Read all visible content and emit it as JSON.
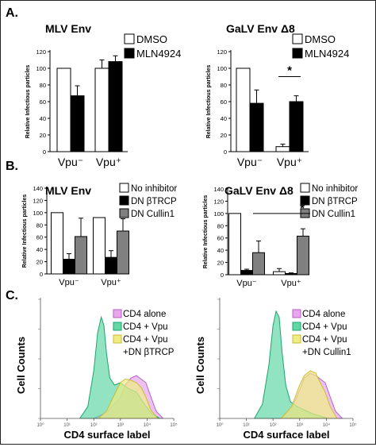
{
  "panels": {
    "A": {
      "label": "A."
    },
    "B": {
      "label": "B."
    },
    "C": {
      "label": "C."
    }
  },
  "chart_data": [
    {
      "id": "A-MLV",
      "type": "bar",
      "title": "MLV Env",
      "ylabel": "Relative Infectious particles",
      "ylim": [
        0,
        120
      ],
      "yticks": [
        0,
        20,
        40,
        60,
        80,
        100,
        120
      ],
      "categories": [
        "Vpu⁻",
        "Vpu⁺"
      ],
      "series": [
        {
          "name": "DMSO",
          "color": "#ffffff",
          "values": [
            100,
            100
          ],
          "errors": [
            0,
            10
          ]
        },
        {
          "name": "MLN4924",
          "color": "#000000",
          "values": [
            67,
            108
          ],
          "errors": [
            12,
            7
          ]
        }
      ],
      "legend": "top-right",
      "annotations": []
    },
    {
      "id": "A-GaLV",
      "type": "bar",
      "title": "GaLV Env Δ8",
      "ylabel": "Relative Infectious particles",
      "ylim": [
        0,
        120
      ],
      "yticks": [
        0,
        20,
        40,
        60,
        80,
        100,
        120
      ],
      "categories": [
        "Vpu⁻",
        "Vpu⁺"
      ],
      "series": [
        {
          "name": "DMSO",
          "color": "#ffffff",
          "values": [
            100,
            6
          ],
          "errors": [
            0,
            3
          ]
        },
        {
          "name": "MLN4924",
          "color": "#000000",
          "values": [
            58,
            60
          ],
          "errors": [
            16,
            7
          ]
        }
      ],
      "legend": "top-right",
      "annotations": [
        {
          "text": "*",
          "between": [
            1,
            1
          ]
        }
      ]
    },
    {
      "id": "B-MLV",
      "type": "bar",
      "title": "MLV Env",
      "ylabel": "Relative Infectious particles",
      "ylim": [
        0,
        140
      ],
      "yticks": [
        0,
        20,
        40,
        60,
        80,
        100,
        120,
        140
      ],
      "categories": [
        "Vpu⁻",
        "Vpu⁺"
      ],
      "series": [
        {
          "name": "No inhibitor",
          "color": "#ffffff",
          "values": [
            100,
            92
          ],
          "errors": [
            0,
            0
          ]
        },
        {
          "name": "DN βTRCP",
          "color": "#000000",
          "values": [
            24,
            27
          ],
          "errors": [
            9,
            11
          ]
        },
        {
          "name": "DN Cullin1",
          "color": "#808080",
          "values": [
            61,
            70
          ],
          "errors": [
            30,
            20
          ]
        }
      ],
      "legend": "top-right",
      "annotations": []
    },
    {
      "id": "B-GaLV",
      "type": "bar",
      "title": "GaLV Env Δ8",
      "ylabel": "Relative Infectious particles",
      "ylim": [
        0,
        140
      ],
      "yticks": [
        0,
        20,
        40,
        60,
        80,
        100,
        120,
        140
      ],
      "categories": [
        "Vpu⁻",
        "Vpu⁺"
      ],
      "series": [
        {
          "name": "No inhibitor",
          "color": "#ffffff",
          "values": [
            100,
            5
          ],
          "errors": [
            0,
            5
          ]
        },
        {
          "name": "DN βTRCP",
          "color": "#000000",
          "values": [
            7,
            2
          ],
          "errors": [
            2,
            1
          ]
        },
        {
          "name": "DN Cullin1",
          "color": "#808080",
          "values": [
            36,
            63
          ],
          "errors": [
            19,
            12
          ]
        }
      ],
      "legend": "top-right",
      "annotations": [
        {
          "text": "*",
          "between": [
            0,
            1
          ]
        }
      ]
    },
    {
      "id": "C-BTRCP",
      "type": "area",
      "ylabel": "Cell Counts",
      "xlabel": "CD4 surface label",
      "xscale": "log",
      "xlim": [
        1,
        100000
      ],
      "xticks": [
        1,
        10,
        100,
        1000,
        10000,
        100000
      ],
      "tick_labels": [
        "10⁰",
        "10¹",
        "10²",
        "10³",
        "10⁴",
        "10⁵"
      ],
      "legend": "top-right",
      "series": [
        {
          "name": "CD4 alone",
          "color": "#e7a6ee",
          "stroke": "#b85fc8",
          "x": [
            100,
            300,
            1000,
            1500,
            2500,
            4000,
            6000,
            9000,
            14000,
            22000,
            40000
          ],
          "y": [
            0,
            5,
            18,
            28,
            34,
            36,
            33,
            30,
            18,
            6,
            0
          ]
        },
        {
          "name": "CD4 + Vpu",
          "color": "#64d7a6",
          "stroke": "#1aa56c",
          "x": [
            30,
            60,
            100,
            140,
            190,
            240,
            300,
            400,
            600,
            1000,
            2000,
            4000,
            8000,
            15000,
            30000
          ],
          "y": [
            0,
            10,
            40,
            72,
            85,
            78,
            55,
            34,
            28,
            30,
            25,
            22,
            12,
            4,
            0
          ]
        },
        {
          "name": "+DN βTRCP",
          "color": "#f0ec82",
          "stroke": "#c9bc3a",
          "x": [
            150,
            300,
            600,
            1000,
            1500,
            2500,
            4000,
            6000,
            9000,
            14000,
            25000
          ],
          "y": [
            0,
            6,
            20,
            30,
            33,
            32,
            30,
            26,
            18,
            7,
            0
          ]
        }
      ],
      "legend_entries": [
        "CD4 alone",
        "CD4 + Vpu",
        "CD4 + Vpu",
        "+DN βTRCP"
      ]
    },
    {
      "id": "C-Cullin1",
      "type": "area",
      "ylabel": "Cell Counts",
      "xlabel": "CD4 surface label",
      "xscale": "log",
      "xlim": [
        1,
        100000
      ],
      "xticks": [
        1,
        10,
        100,
        1000,
        10000,
        100000
      ],
      "tick_labels": [
        "10⁰",
        "10¹",
        "10²",
        "10³",
        "10⁴",
        "10⁵"
      ],
      "legend": "top-right",
      "series": [
        {
          "name": "CD4 alone",
          "color": "#e7a6ee",
          "stroke": "#b85fc8",
          "x": [
            200,
            500,
            1000,
            1500,
            2500,
            4000,
            6000,
            9000,
            14000,
            22000,
            40000
          ],
          "y": [
            0,
            8,
            24,
            34,
            38,
            36,
            33,
            30,
            18,
            6,
            0
          ]
        },
        {
          "name": "CD4 + Vpu",
          "color": "#64d7a6",
          "stroke": "#1aa56c",
          "x": [
            20,
            40,
            70,
            100,
            130,
            170,
            220,
            300,
            450,
            800,
            1500,
            3000,
            6000,
            12000
          ],
          "y": [
            0,
            12,
            45,
            78,
            90,
            85,
            55,
            28,
            14,
            10,
            7,
            4,
            2,
            0
          ]
        },
        {
          "name": "+DN Cullin1",
          "color": "#f0ec82",
          "stroke": "#c9bc3a",
          "x": [
            200,
            500,
            1000,
            1500,
            2500,
            4000,
            6000,
            9000,
            14000,
            25000
          ],
          "y": [
            0,
            10,
            28,
            36,
            40,
            38,
            30,
            22,
            10,
            0
          ]
        }
      ],
      "legend_entries": [
        "CD4 alone",
        "CD4 + Vpu",
        "CD4 + Vpu",
        "+DN Cullin1"
      ]
    }
  ]
}
